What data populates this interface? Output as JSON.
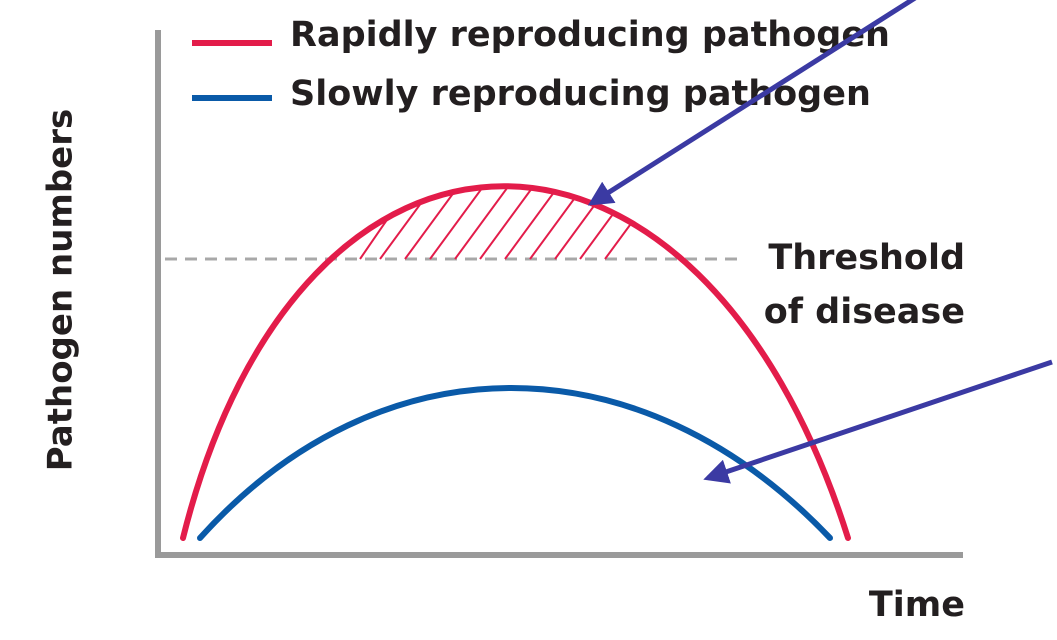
{
  "legend": {
    "items": [
      "Rapidly reproducing pathogen",
      "Slowly reproducing pathogen"
    ]
  },
  "y_axis_label": "Pathogen numbers",
  "x_axis_label": "Time",
  "threshold_label": [
    "Threshold",
    "of disease"
  ]
}
